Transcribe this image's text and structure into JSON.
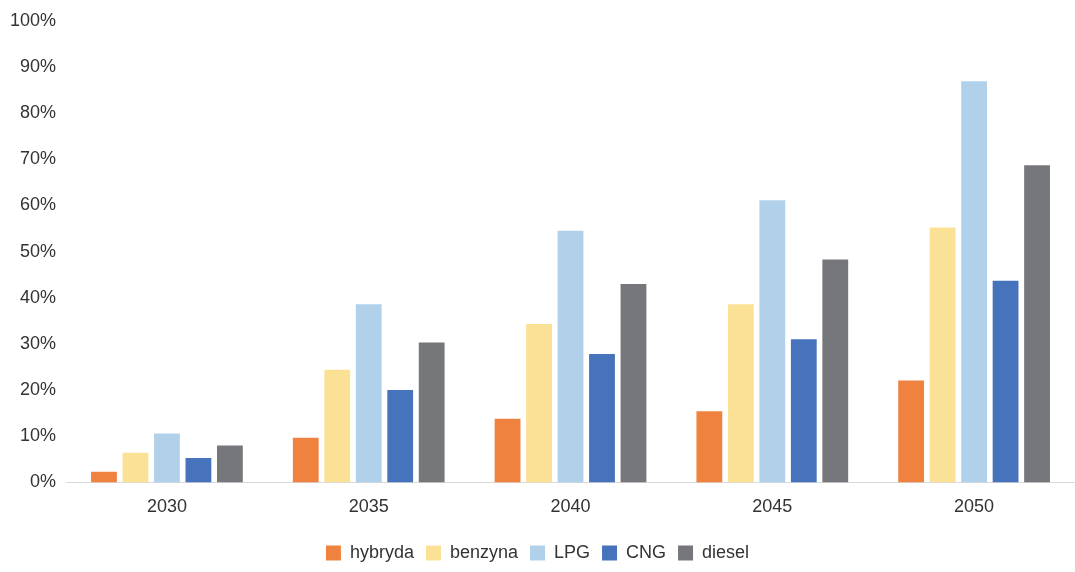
{
  "chart_data": {
    "type": "bar",
    "categories": [
      "2030",
      "2035",
      "2040",
      "2045",
      "2050"
    ],
    "series": [
      {
        "name": "hybryda",
        "color": "#f08240",
        "values": [
          2.3,
          9.7,
          13.8,
          15.4,
          22.1
        ]
      },
      {
        "name": "benzyna",
        "color": "#fbe196",
        "values": [
          6.4,
          24.4,
          34.3,
          38.6,
          55.2
        ]
      },
      {
        "name": "LPG",
        "color": "#b1d1ea",
        "values": [
          10.6,
          38.6,
          54.5,
          61.1,
          86.9
        ]
      },
      {
        "name": "CNG",
        "color": "#4673bb",
        "values": [
          5.3,
          20,
          27.8,
          31,
          43.7
        ]
      },
      {
        "name": "diesel",
        "color": "#76777b",
        "values": [
          8,
          30.3,
          43,
          48.3,
          68.7
        ]
      }
    ],
    "ylim": [
      0,
      100
    ],
    "yticks": [
      {
        "value": 0,
        "label": "0%"
      },
      {
        "value": 10,
        "label": "10%"
      },
      {
        "value": 20,
        "label": "20%"
      },
      {
        "value": 30,
        "label": "30%"
      },
      {
        "value": 40,
        "label": "40%"
      },
      {
        "value": 50,
        "label": "50%"
      },
      {
        "value": 60,
        "label": "60%"
      },
      {
        "value": 70,
        "label": "70%"
      },
      {
        "value": 80,
        "label": "80%"
      },
      {
        "value": 90,
        "label": "90%"
      },
      {
        "value": 100,
        "label": "100%"
      }
    ],
    "grid": false,
    "legend": "bottom"
  }
}
